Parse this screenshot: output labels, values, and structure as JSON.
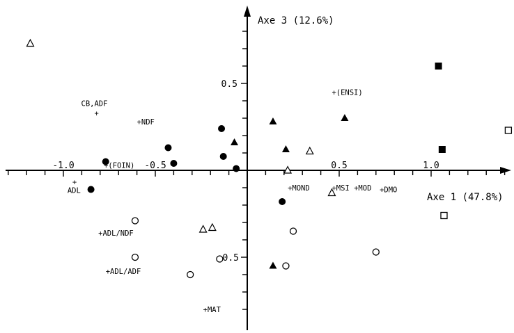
{
  "chart_data": {
    "type": "scatter",
    "xlabel": "Axe 1 (47.8%)",
    "ylabel": "Axe 3 (12.6%)",
    "xlim": [
      -1.3,
      1.45
    ],
    "ylim": [
      -0.87,
      0.95
    ],
    "x_ticks": [
      {
        "value": -1.0,
        "label": "-1.0"
      },
      {
        "value": -0.5,
        "label": "-0.5"
      },
      {
        "value": 0.5,
        "label": "0.5"
      },
      {
        "value": 1.0,
        "label": "1.0"
      }
    ],
    "y_ticks": [
      {
        "value": 0.5,
        "label": "0.5"
      },
      {
        "value": -0.5,
        "label": "-0.5"
      }
    ],
    "variables": [
      {
        "label": "CB,ADF",
        "x": -0.82,
        "y": 0.33
      },
      {
        "label": "+NDF",
        "x": -0.6,
        "y": 0.28
      },
      {
        "label": "+(FOIN)",
        "x": -0.78,
        "y": 0.03
      },
      {
        "label": "ADL",
        "x": -0.94,
        "y": -0.09
      },
      {
        "label": "+(ENSI)",
        "x": 0.46,
        "y": 0.45
      },
      {
        "label": "+MOND",
        "x": 0.22,
        "y": -0.1
      },
      {
        "label": "+MSI",
        "x": 0.46,
        "y": -0.1
      },
      {
        "label": "+MOD",
        "x": 0.58,
        "y": -0.1
      },
      {
        "label": "+DMO",
        "x": 0.72,
        "y": -0.11
      },
      {
        "label": "+ADL/NDF",
        "x": -0.81,
        "y": -0.36
      },
      {
        "label": "+ADL/ADF",
        "x": -0.77,
        "y": -0.58
      },
      {
        "label": "+MAT",
        "x": -0.24,
        "y": -0.8
      }
    ],
    "series": [
      {
        "marker": "filled-circle",
        "points": [
          {
            "x": -0.77,
            "y": 0.05
          },
          {
            "x": -0.85,
            "y": -0.11
          },
          {
            "x": -0.43,
            "y": 0.13
          },
          {
            "x": -0.4,
            "y": 0.04
          },
          {
            "x": -0.14,
            "y": 0.24
          },
          {
            "x": -0.13,
            "y": 0.08
          },
          {
            "x": -0.06,
            "y": 0.01
          },
          {
            "x": 0.19,
            "y": -0.18
          }
        ]
      },
      {
        "marker": "open-circle",
        "points": [
          {
            "x": -0.61,
            "y": -0.29
          },
          {
            "x": -0.61,
            "y": -0.5
          },
          {
            "x": -0.31,
            "y": -0.6
          },
          {
            "x": -0.15,
            "y": -0.51
          },
          {
            "x": 0.25,
            "y": -0.35
          },
          {
            "x": 0.21,
            "y": -0.55
          },
          {
            "x": 0.7,
            "y": -0.47
          }
        ]
      },
      {
        "marker": "filled-triangle",
        "points": [
          {
            "x": -0.07,
            "y": 0.16
          },
          {
            "x": 0.14,
            "y": 0.28
          },
          {
            "x": 0.21,
            "y": 0.12
          },
          {
            "x": 0.53,
            "y": 0.3
          },
          {
            "x": 0.14,
            "y": -0.55
          }
        ]
      },
      {
        "marker": "open-triangle",
        "points": [
          {
            "x": -1.18,
            "y": 0.73
          },
          {
            "x": 0.22,
            "y": 0.0
          },
          {
            "x": 0.34,
            "y": 0.11
          },
          {
            "x": -0.24,
            "y": -0.34
          },
          {
            "x": -0.19,
            "y": -0.33
          },
          {
            "x": 0.46,
            "y": -0.13
          }
        ]
      },
      {
        "marker": "filled-square",
        "points": [
          {
            "x": 1.04,
            "y": 0.6
          },
          {
            "x": 1.06,
            "y": 0.12
          }
        ]
      },
      {
        "marker": "open-square",
        "points": [
          {
            "x": 1.42,
            "y": 0.23
          },
          {
            "x": 1.07,
            "y": -0.26
          }
        ]
      }
    ]
  }
}
